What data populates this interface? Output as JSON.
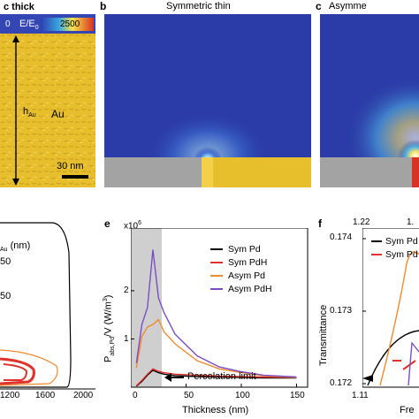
{
  "panels": {
    "a": {
      "title": "c thick",
      "colorbar": {
        "min": "0",
        "label": "E/E",
        "label_sub": "0",
        "max": "2500"
      },
      "dim_label": "h",
      "dim_sub": "Au",
      "material": "Au",
      "scalebar": "30 nm"
    },
    "b": {
      "letter": "b",
      "title": "Symmetric thin"
    },
    "c": {
      "letter": "c",
      "title": "Asymme"
    },
    "d": {
      "legend_header": "Au",
      "legend_unit": "(nm)",
      "legend_values": [
        "50",
        "50"
      ],
      "xticks": [
        "1200",
        "1600",
        "2000"
      ]
    },
    "e": {
      "letter": "e",
      "exponent": "x10",
      "exponent_sup": "6",
      "ylabel_main": "P",
      "ylabel_sub": "abs,Pd",
      "ylabel_rest": "/V (W/m",
      "ylabel_sup": "3",
      "ylabel_end": ")",
      "xlabel": "Thickness (nm)",
      "xticks": [
        "0",
        "50",
        "100",
        "150"
      ],
      "yticks": [
        "1",
        "2"
      ],
      "annotation": "Percolation limit",
      "legend": [
        "Sym Pd",
        "Sym PdH",
        "Asym Pd",
        "Asym PdH"
      ]
    },
    "f": {
      "letter": "f",
      "ylabel": "Transmittance",
      "top_ticks": [
        "1.22",
        "1."
      ],
      "yticks": [
        "0.174",
        "0.173",
        "0.172"
      ],
      "xtick": "1.11",
      "xlabel": "Fre",
      "legend": [
        "Sym Pd",
        "Sym Pd"
      ]
    }
  },
  "chart_data": {
    "type": "line",
    "xlabel": "Thickness (nm)",
    "ylabel": "P_abs,Pd/V (W/m3)",
    "y_multiplier": "x10^6",
    "xlim": [
      0,
      160
    ],
    "ylim": [
      0,
      3.3
    ],
    "shaded_region": [
      0,
      28
    ],
    "series": [
      {
        "name": "Sym Pd",
        "color": "#000000",
        "x": [
          5,
          10,
          15,
          20,
          25,
          30,
          40,
          60,
          80,
          100,
          120,
          150
        ],
        "y": [
          0.02,
          0.12,
          0.25,
          0.35,
          0.3,
          0.27,
          0.24,
          0.22,
          0.21,
          0.2,
          0.19,
          0.19
        ]
      },
      {
        "name": "Sym PdH",
        "color": "#e0322a",
        "x": [
          5,
          10,
          15,
          20,
          25,
          30,
          40,
          60,
          80,
          100,
          120,
          150
        ],
        "y": [
          0.03,
          0.14,
          0.27,
          0.38,
          0.33,
          0.3,
          0.27,
          0.25,
          0.23,
          0.22,
          0.21,
          0.2
        ]
      },
      {
        "name": "Asym Pd",
        "color": "#f28a2e",
        "x": [
          5,
          10,
          15,
          20,
          25,
          30,
          40,
          60,
          80,
          100,
          120,
          150
        ],
        "y": [
          0.4,
          1.05,
          1.25,
          1.3,
          1.4,
          1.15,
          0.9,
          0.55,
          0.38,
          0.3,
          0.24,
          0.2
        ]
      },
      {
        "name": "Asym PdH",
        "color": "#7a4fc4",
        "x": [
          5,
          10,
          15,
          20,
          25,
          30,
          40,
          60,
          80,
          100,
          120,
          150
        ],
        "y": [
          0.5,
          1.3,
          1.65,
          2.85,
          1.85,
          1.55,
          1.1,
          0.65,
          0.42,
          0.32,
          0.25,
          0.21
        ]
      }
    ]
  }
}
